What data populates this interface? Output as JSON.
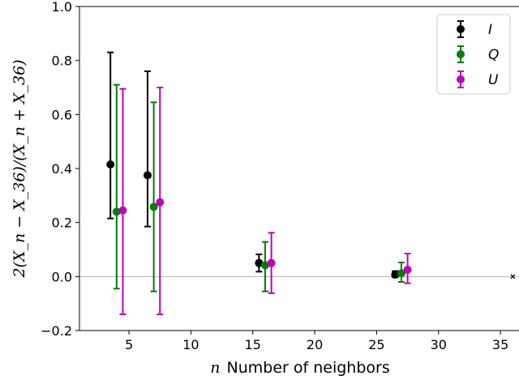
{
  "chart_data": {
    "type": "scatter",
    "xlabel": "n Number of neighbors",
    "xlabel_math": "n",
    "xlabel_text": "Number of neighbors",
    "ylabel": "2(X_n − X_36)/(X_n + X_36)",
    "xlim": [
      1,
      36.5
    ],
    "ylim": [
      -0.2,
      1.0
    ],
    "xticks": [
      5,
      10,
      15,
      20,
      25,
      30,
      35
    ],
    "yticks": [
      -0.2,
      0.0,
      0.2,
      0.4,
      0.6,
      0.8,
      1.0
    ],
    "ytick_labels": [
      "−0.2",
      "0.0",
      "0.2",
      "0.4",
      "0.6",
      "0.8",
      "1.0"
    ],
    "reference_line_y": 0.0,
    "legend_position": "top-right",
    "series": [
      {
        "name": "I",
        "color": "#000000",
        "points": [
          {
            "x": 3.5,
            "y": 0.415,
            "low": 0.215,
            "high": 0.83
          },
          {
            "x": 6.5,
            "y": 0.375,
            "low": 0.185,
            "high": 0.76
          },
          {
            "x": 15.5,
            "y": 0.05,
            "low": 0.018,
            "high": 0.082
          },
          {
            "x": 26.5,
            "y": 0.007,
            "low": -0.003,
            "high": 0.02
          }
        ]
      },
      {
        "name": "Q",
        "color": "#008000",
        "points": [
          {
            "x": 4.0,
            "y": 0.24,
            "low": -0.045,
            "high": 0.71
          },
          {
            "x": 7.0,
            "y": 0.258,
            "low": -0.055,
            "high": 0.645
          },
          {
            "x": 16.0,
            "y": 0.042,
            "low": -0.055,
            "high": 0.128
          },
          {
            "x": 27.0,
            "y": 0.012,
            "low": -0.02,
            "high": 0.052
          }
        ]
      },
      {
        "name": "U",
        "color": "#bf00bf",
        "points": [
          {
            "x": 4.5,
            "y": 0.245,
            "low": -0.14,
            "high": 0.695
          },
          {
            "x": 7.5,
            "y": 0.275,
            "low": -0.14,
            "high": 0.7
          },
          {
            "x": 16.5,
            "y": 0.05,
            "low": -0.062,
            "high": 0.162
          },
          {
            "x": 27.5,
            "y": 0.025,
            "low": -0.025,
            "high": 0.085
          }
        ]
      }
    ],
    "reference_point": {
      "x": 36,
      "y": 0.0,
      "marker": "x"
    }
  }
}
